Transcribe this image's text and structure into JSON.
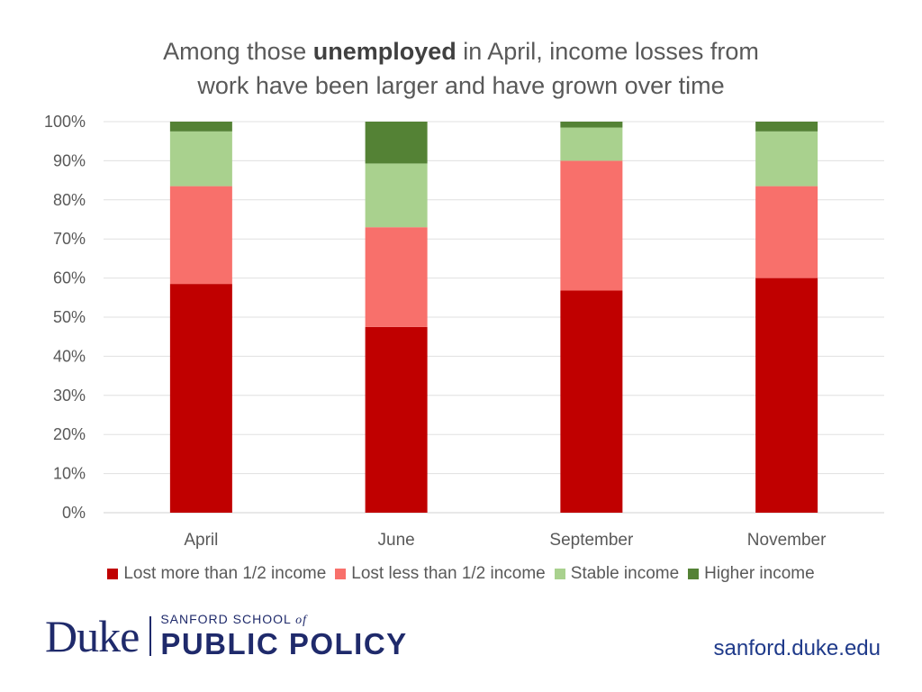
{
  "title": {
    "line1_prefix": "Among those ",
    "line1_bold": "unemployed",
    "line1_suffix": " in April, income losses from",
    "line2": "work have been larger and have grown over time"
  },
  "chart_data": {
    "type": "stacked_bar",
    "title": "Among those unemployed in April, income losses from work have been larger and have grown over time",
    "categories": [
      "April",
      "June",
      "September",
      "November"
    ],
    "series": [
      {
        "name": "Lost more than 1/2 income",
        "color": "#c00000",
        "values": [
          58.5,
          47.5,
          56.8,
          60.0
        ]
      },
      {
        "name": "Lost less than 1/2 income",
        "color": "#f8706b",
        "values": [
          25.0,
          25.5,
          33.2,
          23.5
        ]
      },
      {
        "name": "Stable income",
        "color": "#a9d18e",
        "values": [
          14.0,
          16.3,
          8.5,
          14.0
        ]
      },
      {
        "name": "Higher income",
        "color": "#548235",
        "values": [
          2.5,
          10.7,
          1.5,
          2.5
        ]
      }
    ],
    "ylim": [
      0,
      100
    ],
    "yticks": [
      "0%",
      "10%",
      "20%",
      "30%",
      "40%",
      "50%",
      "60%",
      "70%",
      "80%",
      "90%",
      "100%"
    ],
    "grid": true,
    "legend": "bottom"
  },
  "footer": {
    "logo_duke": "Duke",
    "logo_school_top": "SANFORD SCHOOL",
    "logo_school_of": "of",
    "logo_school_bottom": "PUBLIC POLICY",
    "url": "sanford.duke.edu"
  }
}
